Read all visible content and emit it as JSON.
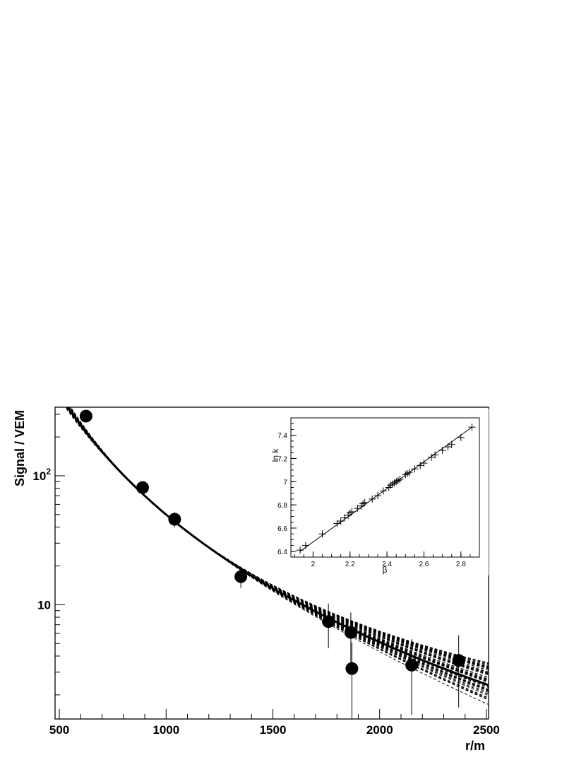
{
  "chart_data": [
    {
      "type": "scatter",
      "xlabel": "r/m",
      "ylabel": "Signal / VEM",
      "xlim": [
        480,
        2510
      ],
      "ylim": [
        1.3,
        340
      ],
      "y_scale": "log",
      "x_ticks": [
        {
          "value": 500,
          "label": "500"
        },
        {
          "value": 1000,
          "label": "1000"
        },
        {
          "value": 1500,
          "label": "1500"
        },
        {
          "value": 2000,
          "label": "2000"
        },
        {
          "value": 2500,
          "label": "2500"
        }
      ],
      "y_ticks": [
        {
          "value": 10,
          "label": "10"
        },
        {
          "value": 100,
          "label": "10^2"
        }
      ],
      "points": [
        {
          "x": 625,
          "y": 290,
          "err": 12
        },
        {
          "x": 890,
          "y": 81,
          "err": 7
        },
        {
          "x": 1040,
          "y": 46,
          "err": 6
        },
        {
          "x": 1350,
          "y": 16.5,
          "err": 3
        },
        {
          "x": 1760,
          "y": 7.4,
          "err": 2.8
        },
        {
          "x": 1865,
          "y": 6.1,
          "err": 2.6
        },
        {
          "x": 1870,
          "y": 3.2,
          "err": 1.9
        },
        {
          "x": 2150,
          "y": 3.4,
          "err": 2
        },
        {
          "x": 2370,
          "y": 3.7,
          "err": 2.1
        }
      ],
      "fit_family": {
        "style": "dashed",
        "n_curves": 60,
        "ref_r": 1000,
        "slope_low": 0.12,
        "slope_high": 0.38
      },
      "best_fit": {
        "style": "solid",
        "ln_k": 7.0,
        "beta": 2.45
      }
    },
    {
      "type": "scatter",
      "xlabel": "β",
      "ylabel": "ln k",
      "xlim": [
        1.88,
        2.9
      ],
      "ylim": [
        6.35,
        7.55
      ],
      "x_ticks": [
        {
          "value": 2.0,
          "label": "2"
        },
        {
          "value": 2.2,
          "label": "2.2"
        },
        {
          "value": 2.4,
          "label": "2.4"
        },
        {
          "value": 2.6,
          "label": "2.6"
        },
        {
          "value": 2.8,
          "label": "2.8"
        }
      ],
      "y_ticks": [
        {
          "value": 6.4,
          "label": "6.4"
        },
        {
          "value": 6.6,
          "label": "6.6"
        },
        {
          "value": 6.8,
          "label": "6.8"
        },
        {
          "value": 7.0,
          "label": "7"
        },
        {
          "value": 7.2,
          "label": "7.2"
        },
        {
          "value": 7.4,
          "label": "7.4"
        }
      ],
      "x": [
        1.93,
        1.96,
        2.05,
        2.13,
        2.15,
        2.17,
        2.19,
        2.2,
        2.21,
        2.24,
        2.26,
        2.27,
        2.28,
        2.32,
        2.35,
        2.38,
        2.41,
        2.42,
        2.43,
        2.44,
        2.45,
        2.46,
        2.47,
        2.5,
        2.51,
        2.52,
        2.55,
        2.58,
        2.6,
        2.64,
        2.66,
        2.7,
        2.73,
        2.75,
        2.8,
        2.86
      ],
      "y": [
        6.41,
        6.45,
        6.55,
        6.64,
        6.66,
        6.69,
        6.71,
        6.73,
        6.74,
        6.77,
        6.79,
        6.81,
        6.82,
        6.85,
        6.88,
        6.92,
        6.95,
        6.97,
        6.98,
        6.99,
        7.0,
        7.01,
        7.02,
        7.06,
        7.07,
        7.08,
        7.11,
        7.14,
        7.16,
        7.21,
        7.23,
        7.27,
        7.3,
        7.32,
        7.38,
        7.47
      ],
      "line": {
        "x": [
          1.93,
          2.86
        ],
        "y": [
          6.4,
          7.47
        ]
      }
    }
  ]
}
